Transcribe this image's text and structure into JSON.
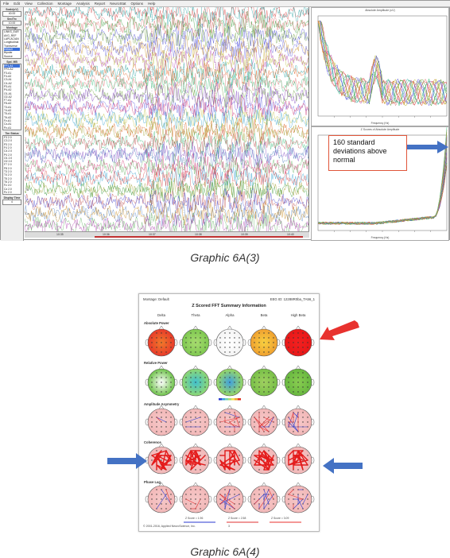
{
  "graphic_a": {
    "caption": "Graphic 6A(3)",
    "menu": [
      "File",
      "Edit",
      "View",
      "Collection",
      "Montage",
      "Analysis",
      "Report",
      "NeuroStat",
      "Options",
      "Help"
    ],
    "left_panel": {
      "scale_label": "Scale(uV)",
      "scale_value": "40.00",
      "epoch_label": "Sec/Trc",
      "epoch_value": "10.00",
      "montage_label": "Montage",
      "montages": [
        "LINKS_EAR",
        "AVG_REF",
        "LAPLACIAN",
        "Longitudinal",
        "Transverse",
        "Default",
        "Bipolar",
        "Source"
      ],
      "montage_selected": 5,
      "speed_label": "Spd. MB",
      "channels": [
        "FP1-A1",
        "FP2-A2",
        "F3-A1",
        "F4-A2",
        "C3-A1",
        "C4-A2",
        "P3-A1",
        "P4-A2",
        "O1-A1",
        "O2-A2",
        "F7-A1",
        "F8-A2",
        "T3-A1",
        "T4-A2",
        "T5-A1",
        "T6-A2",
        "Fz-A1",
        "Cz-A1",
        "Pz-A1"
      ],
      "channels_selected": 0,
      "time_label": "Tim Status",
      "time_items": [
        "F3 2.0",
        "C3 2.0",
        "P3 2.0",
        "F4 2.0",
        "C4 2.0",
        "P4 2.0",
        "O1 2.0",
        "O2 2.0",
        "F7 2.0",
        "F8 2.0",
        "T3 2.0",
        "T4 2.0",
        "T5 2.0",
        "T6 2.0",
        "Fz 2.0",
        "Cz 2.0",
        "Pz 2.0"
      ],
      "display_label": "Display Time",
      "display_value": "4"
    },
    "eeg_channels": [
      "FP1",
      "FP2",
      "F3",
      "F4",
      "C3",
      "C4",
      "P3",
      "P4",
      "O1",
      "O2",
      "F7",
      "F8",
      "T3",
      "T4",
      "T5",
      "T6",
      "Fz",
      "Cz",
      "Pz"
    ],
    "eeg_time_ticks": [
      "10:35",
      "10:36",
      "10:37",
      "10:38",
      "10:39",
      "10:40"
    ],
    "spectrum_top": {
      "title": "Absolute Amplitude (uV)",
      "xlabel": "Frequency (Hz)"
    },
    "spectrum_bottom": {
      "title": "Z Scores of Absolute Amplitude",
      "xlabel": "Frequency (Hz)"
    },
    "callout_text": "160 standard deviations above normal",
    "arrow_color": "#4472c4",
    "callout_border_color": "#e0553a"
  },
  "graphic_b": {
    "caption": "Graphic 6A(4)",
    "header_left": "Montage: Default",
    "header_right": "EEG ID: 12288R0ba_TA56_1",
    "title": "Z Scored FFT Summary Information",
    "bands": [
      "Delta",
      "Theta",
      "Alpha",
      "Beta",
      "High Beta"
    ],
    "rows": [
      "Absolute Power",
      "Relative Power",
      "Amplitude Asymmetry",
      "Coherence",
      "Phase Lag"
    ],
    "scale_labels": [
      "Z Score = 1.96",
      "Z Score = 2.58",
      "Z Score = 3.09"
    ],
    "footer_left": "© 2001-2016, Applied NeuroScience, Inc.",
    "footer_page": "3",
    "red_arrow_color": "#e8322e",
    "blue_arrow_color": "#4472c4"
  }
}
